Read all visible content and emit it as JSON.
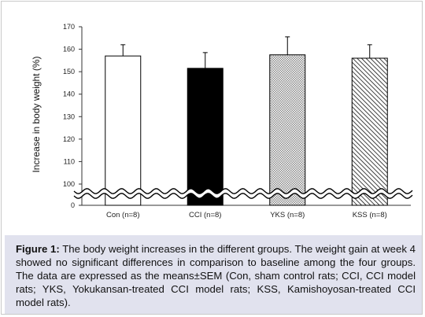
{
  "chart_data": {
    "type": "bar",
    "categories": [
      "Con (n=8)",
      "CCI (n=8)",
      "YKS (n=8)",
      "KSS (n=8)"
    ],
    "values": [
      157,
      151.5,
      157.5,
      156
    ],
    "errors": [
      5,
      7,
      8,
      6
    ],
    "ylabel": "Increase in body weight (%)",
    "xlabel": "",
    "title": "",
    "ylim": [
      90,
      170
    ],
    "yticks": [
      170,
      160,
      150,
      140,
      130,
      120,
      110,
      100,
      0
    ],
    "axis_break": "between 0 and 100",
    "grid": false,
    "legend": "none",
    "bar_styles": [
      "white",
      "black",
      "dotted",
      "diagonal-hatch"
    ],
    "colors": {
      "bar_edge": "#000000",
      "cci_fill": "#000000",
      "yks_fill": "#bdbdbd"
    }
  },
  "caption": {
    "label": "Figure 1:",
    "text": " The body weight increases in the different groups. The weight gain at week 4 showed no significant differences in comparison to baseline among the four groups. The data are expressed as the means±SEM (Con, sham control rats; CCI, CCI model rats; YKS, Yokukansan-treated CCI model rats; KSS, Kamishoyosan-treated CCI model rats)."
  },
  "colors": {
    "caption_background": "#e1e2ee",
    "frame_border": "#c9c9c9"
  }
}
